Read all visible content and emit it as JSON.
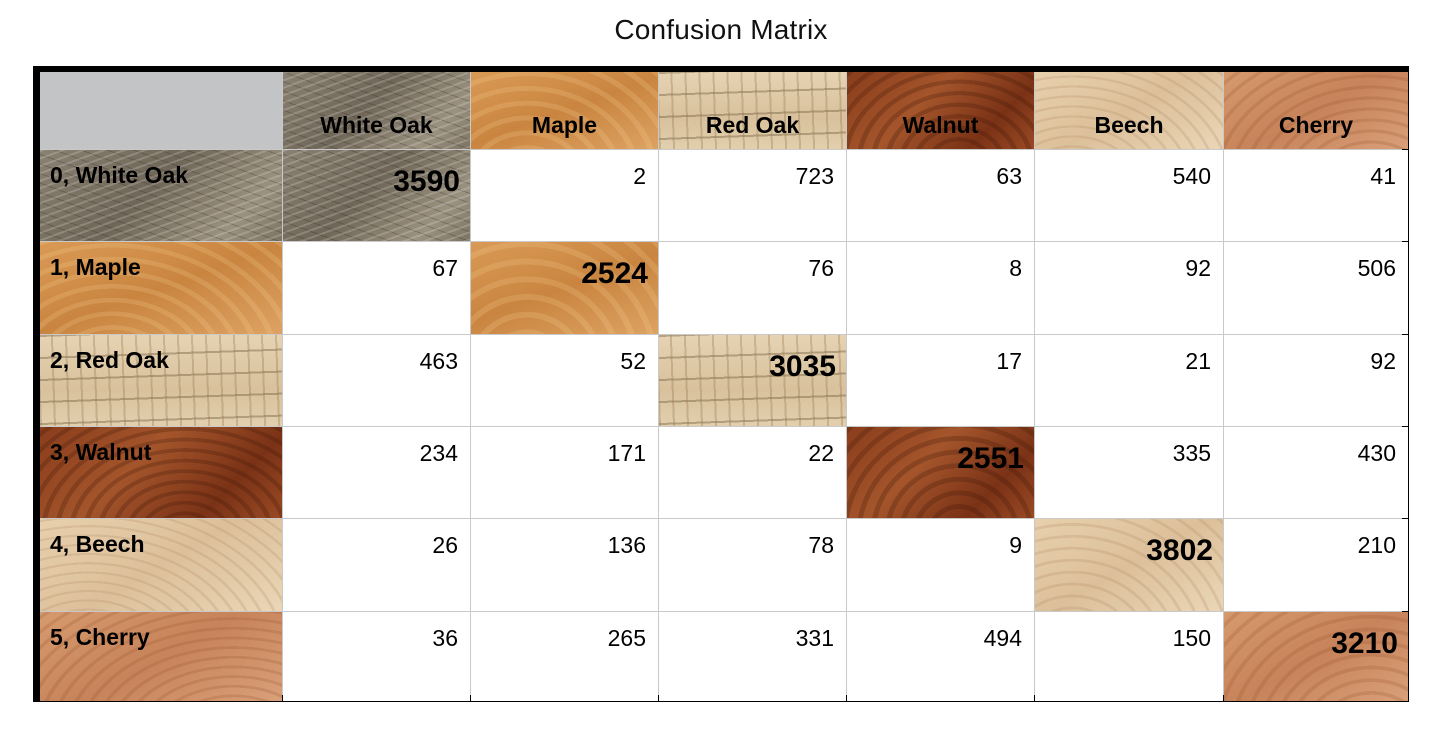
{
  "chart_data": {
    "type": "table",
    "title": "Confusion Matrix",
    "columns": [
      "White Oak",
      "Maple",
      "Red Oak",
      "Walnut",
      "Beech",
      "Cherry"
    ],
    "rows": [
      "0, White Oak",
      "1, Maple",
      "2, Red Oak",
      "3, Walnut",
      "4, Beech",
      "5, Cherry"
    ],
    "values": [
      [
        3590,
        2,
        723,
        63,
        540,
        41
      ],
      [
        67,
        2524,
        76,
        8,
        92,
        506
      ],
      [
        463,
        52,
        3035,
        17,
        21,
        92
      ],
      [
        234,
        171,
        22,
        2551,
        335,
        430
      ],
      [
        26,
        136,
        78,
        9,
        3802,
        210
      ],
      [
        36,
        265,
        331,
        494,
        150,
        3210
      ]
    ],
    "textures": [
      "white-oak",
      "maple",
      "red-oak",
      "walnut",
      "beech",
      "cherry"
    ],
    "colors": {
      "corner": "#c3c4c5",
      "border": "#000000",
      "gridline": "#c9c9c9"
    }
  }
}
